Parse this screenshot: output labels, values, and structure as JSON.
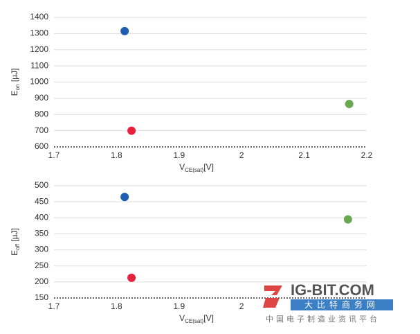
{
  "chart_data": [
    {
      "type": "scatter",
      "ylabel": {
        "main": "E",
        "sub": "on",
        "unit": " [µJ]"
      },
      "xlabel": {
        "main": "V",
        "sub": "CE(sat)",
        "unit": "[V]"
      },
      "xlim": [
        1.7,
        2.2
      ],
      "xticks": [
        {
          "value": 1.7,
          "label": "1.7"
        },
        {
          "value": 1.8,
          "label": "1.8"
        },
        {
          "value": 1.9,
          "label": "1.9"
        },
        2,
        {
          "value": 2.1,
          "label": "2.1"
        },
        {
          "value": 2.2,
          "label": "2.2"
        }
      ],
      "ylim": [
        600,
        1400
      ],
      "yticks": [
        600,
        700,
        800,
        900,
        1000,
        1100,
        1200,
        1300,
        1400
      ],
      "grid": true,
      "series": [
        {
          "color": "#1f5fb0",
          "x": [
            1.813
          ],
          "values": [
            1315
          ]
        },
        {
          "color": "#e8203c",
          "x": [
            1.824
          ],
          "values": [
            700
          ]
        },
        {
          "color": "#6aa84f",
          "x": [
            2.172
          ],
          "values": [
            865
          ]
        }
      ]
    },
    {
      "type": "scatter",
      "ylabel": {
        "main": "E",
        "sub": "off",
        "unit": " [µJ]"
      },
      "xlabel": {
        "main": "V",
        "sub": "CE(sat)",
        "unit": "[V]"
      },
      "xlim": [
        1.7,
        2.2
      ],
      "xticks": [
        {
          "value": 1.7,
          "label": "1.7"
        },
        {
          "value": 1.8,
          "label": "1.8"
        },
        {
          "value": 1.9,
          "label": "1.9"
        },
        2
      ],
      "ylim": [
        150,
        500
      ],
      "yticks": [
        150,
        200,
        250,
        300,
        350,
        400,
        450,
        500
      ],
      "grid": true,
      "series": [
        {
          "color": "#1f5fb0",
          "x": [
            1.813
          ],
          "values": [
            465
          ]
        },
        {
          "color": "#e8203c",
          "x": [
            1.824
          ],
          "values": [
            213
          ]
        },
        {
          "color": "#6aa84f",
          "x": [
            2.17
          ],
          "values": [
            395
          ]
        }
      ]
    }
  ],
  "watermark": {
    "brand": "IG-BIT.COM",
    "site": "大比特商务网",
    "tagline": "中国电子制造业资讯平台"
  }
}
